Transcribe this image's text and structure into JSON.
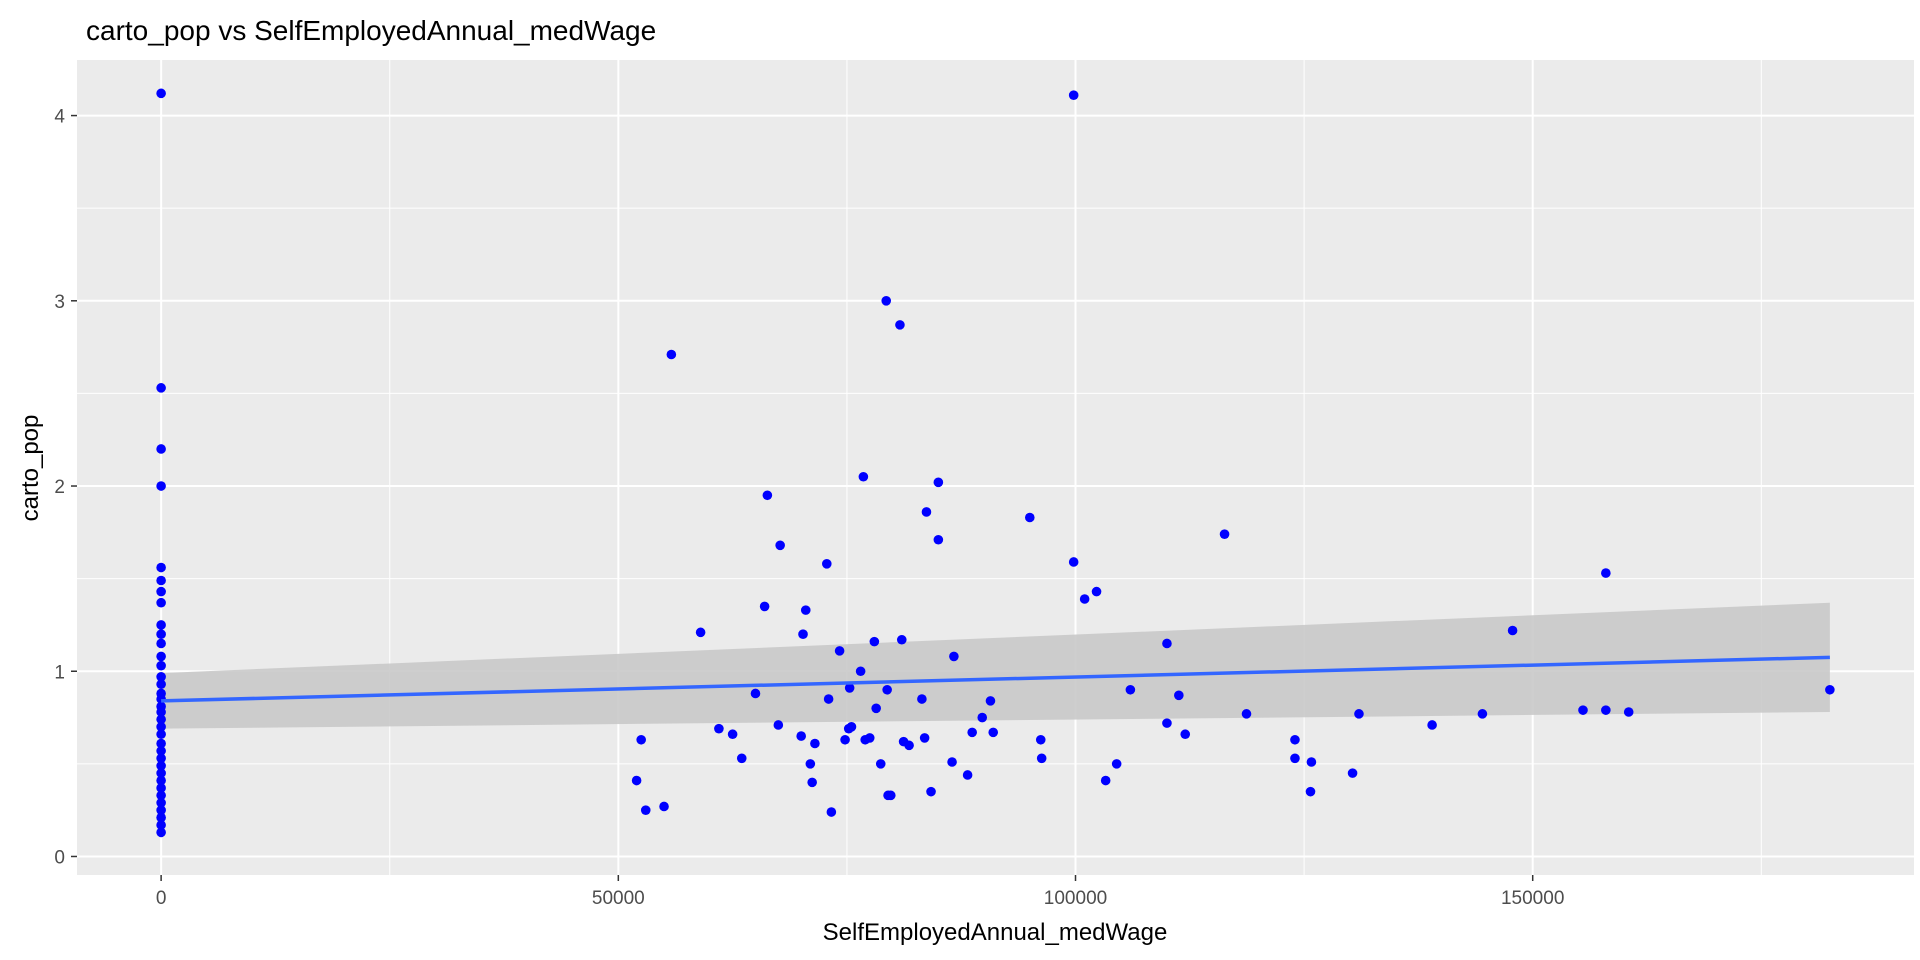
{
  "chart_data": {
    "type": "scatter",
    "title": "carto_pop vs SelfEmployedAnnual_medWage",
    "xlabel": "SelfEmployedAnnual_medWage",
    "ylabel": "carto_pop",
    "xlim": [
      -9200,
      191700
    ],
    "ylim": [
      -0.1,
      4.3
    ],
    "x_ticks": [
      0,
      50000,
      100000,
      150000
    ],
    "x_tick_labels": [
      "0",
      "50000",
      "100000",
      "150000"
    ],
    "y_ticks": [
      0,
      1,
      2,
      3,
      4
    ],
    "y_tick_labels": [
      "0",
      "1",
      "2",
      "3",
      "4"
    ],
    "grid": true,
    "colors": {
      "panel": "#ebebeb",
      "grid": "#ffffff",
      "points": "#0000ff",
      "fit_line": "#3366ff",
      "ribbon": "#c9c9c9"
    },
    "points": [
      [
        0,
        4.12
      ],
      [
        0,
        2.53
      ],
      [
        0,
        2.2
      ],
      [
        0,
        2.0
      ],
      [
        0,
        1.56
      ],
      [
        0,
        1.49
      ],
      [
        0,
        1.43
      ],
      [
        0,
        1.37
      ],
      [
        0,
        1.25
      ],
      [
        0,
        1.2
      ],
      [
        0,
        1.15
      ],
      [
        0,
        1.08
      ],
      [
        0,
        1.03
      ],
      [
        0,
        0.97
      ],
      [
        0,
        0.93
      ],
      [
        0,
        0.88
      ],
      [
        0,
        0.85
      ],
      [
        0,
        0.81
      ],
      [
        0,
        0.78
      ],
      [
        0,
        0.74
      ],
      [
        0,
        0.7
      ],
      [
        0,
        0.66
      ],
      [
        0,
        0.61
      ],
      [
        0,
        0.57
      ],
      [
        0,
        0.53
      ],
      [
        0,
        0.49
      ],
      [
        0,
        0.45
      ],
      [
        0,
        0.41
      ],
      [
        0,
        0.37
      ],
      [
        0,
        0.33
      ],
      [
        0,
        0.29
      ],
      [
        0,
        0.25
      ],
      [
        0,
        0.21
      ],
      [
        0,
        0.17
      ],
      [
        0,
        0.13
      ],
      [
        52000,
        0.41
      ],
      [
        52500,
        0.63
      ],
      [
        53000,
        0.25
      ],
      [
        55000,
        0.27
      ],
      [
        55800,
        2.71
      ],
      [
        59000,
        1.21
      ],
      [
        61000,
        0.69
      ],
      [
        62500,
        0.66
      ],
      [
        63500,
        0.53
      ],
      [
        65000,
        0.88
      ],
      [
        66000,
        1.35
      ],
      [
        66300,
        1.95
      ],
      [
        67500,
        0.71
      ],
      [
        67700,
        1.68
      ],
      [
        70000,
        0.65
      ],
      [
        70200,
        1.2
      ],
      [
        70500,
        1.33
      ],
      [
        71000,
        0.5
      ],
      [
        71200,
        0.4
      ],
      [
        71500,
        0.61
      ],
      [
        72800,
        1.58
      ],
      [
        73000,
        0.85
      ],
      [
        73300,
        0.24
      ],
      [
        74200,
        1.11
      ],
      [
        74800,
        0.63
      ],
      [
        75200,
        0.69
      ],
      [
        75300,
        0.91
      ],
      [
        75500,
        0.7
      ],
      [
        76500,
        1.0
      ],
      [
        76800,
        2.05
      ],
      [
        77000,
        0.63
      ],
      [
        77500,
        0.64
      ],
      [
        78000,
        1.16
      ],
      [
        78200,
        0.8
      ],
      [
        78700,
        0.5
      ],
      [
        79300,
        3.0
      ],
      [
        79400,
        0.9
      ],
      [
        79500,
        0.33
      ],
      [
        79800,
        0.33
      ],
      [
        80800,
        2.87
      ],
      [
        81000,
        1.17
      ],
      [
        81200,
        0.62
      ],
      [
        81800,
        0.6
      ],
      [
        83200,
        0.85
      ],
      [
        83500,
        0.64
      ],
      [
        83700,
        1.86
      ],
      [
        84200,
        0.35
      ],
      [
        85000,
        2.02
      ],
      [
        85000,
        1.71
      ],
      [
        86500,
        0.51
      ],
      [
        86700,
        1.08
      ],
      [
        88200,
        0.44
      ],
      [
        88700,
        0.67
      ],
      [
        89800,
        0.75
      ],
      [
        90700,
        0.84
      ],
      [
        91000,
        0.67
      ],
      [
        95000,
        1.83
      ],
      [
        96200,
        0.63
      ],
      [
        96300,
        0.53
      ],
      [
        99800,
        4.11
      ],
      [
        99800,
        1.59
      ],
      [
        101000,
        1.39
      ],
      [
        102300,
        1.43
      ],
      [
        103300,
        0.41
      ],
      [
        104500,
        0.5
      ],
      [
        106000,
        0.9
      ],
      [
        110000,
        1.15
      ],
      [
        110000,
        0.72
      ],
      [
        111300,
        0.87
      ],
      [
        112000,
        0.66
      ],
      [
        116300,
        1.74
      ],
      [
        118700,
        0.77
      ],
      [
        124000,
        0.63
      ],
      [
        124000,
        0.53
      ],
      [
        125700,
        0.35
      ],
      [
        125800,
        0.51
      ],
      [
        130300,
        0.45
      ],
      [
        131000,
        0.77
      ],
      [
        139000,
        0.71
      ],
      [
        144500,
        0.77
      ],
      [
        147800,
        1.22
      ],
      [
        155500,
        0.79
      ],
      [
        158000,
        1.53
      ],
      [
        158000,
        0.79
      ],
      [
        160500,
        0.78
      ],
      [
        182500,
        0.9
      ]
    ],
    "smooth": {
      "method": "linear fit with confidence band",
      "x": [
        0,
        182500
      ],
      "fit": [
        0.84,
        1.075
      ],
      "lower": [
        0.69,
        0.78
      ],
      "upper": [
        0.99,
        1.37
      ]
    }
  }
}
